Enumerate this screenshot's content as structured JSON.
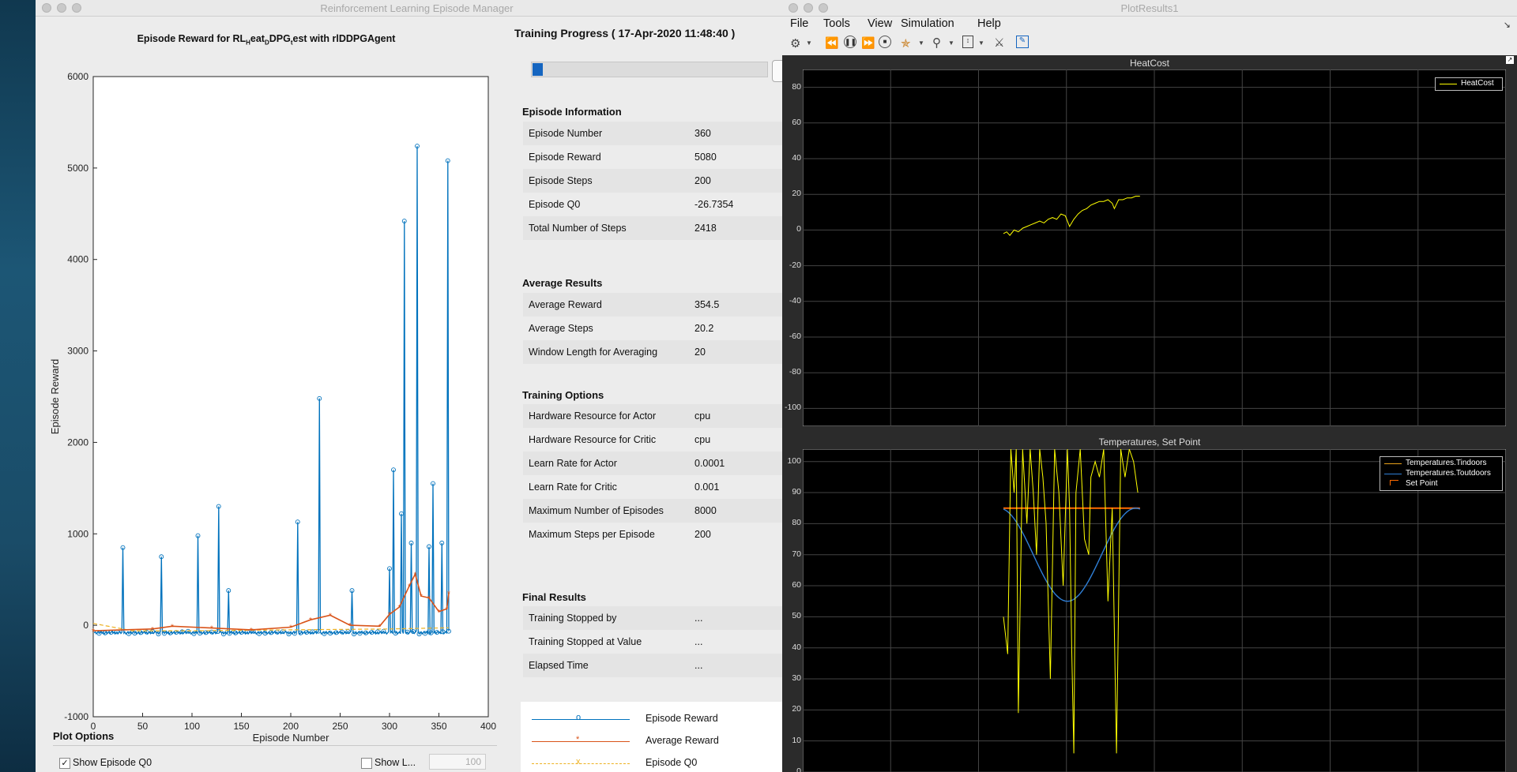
{
  "desktop": {
    "background": "#1c5675"
  },
  "manager": {
    "window_title": "Reinforcement Learning Episode Manager",
    "plot": {
      "title": "Episode Reward for RL_Heat_DDPG_test with rlDDPGAgent",
      "title_prefix": "Episode Reward for RL",
      "title_sub1": "H",
      "title_mid1": "eat",
      "title_sub2": "D",
      "title_mid2": "DPG",
      "title_sub3": "t",
      "title_suffix": "est with rlDDPGAgent",
      "xlabel": "Episode Number",
      "ylabel": "Episode Reward",
      "x_ticks": [
        "0",
        "50",
        "100",
        "150",
        "200",
        "250",
        "300",
        "350",
        "400"
      ],
      "y_ticks": [
        "-1000",
        "0",
        "1000",
        "2000",
        "3000",
        "4000",
        "5000",
        "6000"
      ]
    },
    "chart_data": {
      "type": "line",
      "title": "Episode Reward for RL_Heat_DDPG_test with rlDDPGAgent",
      "xlabel": "Episode Number",
      "ylabel": "Episode Reward",
      "xlim": [
        0,
        400
      ],
      "ylim": [
        -1000,
        6000
      ],
      "spikes": [
        [
          30,
          850
        ],
        [
          69,
          750
        ],
        [
          106,
          980
        ],
        [
          127,
          1300
        ],
        [
          137,
          380
        ],
        [
          207,
          1130
        ],
        [
          229,
          2480
        ],
        [
          262,
          380
        ],
        [
          300,
          620
        ],
        [
          304,
          1700
        ],
        [
          312,
          1220
        ],
        [
          315,
          4420
        ],
        [
          322,
          900
        ],
        [
          328,
          5240
        ],
        [
          340,
          860
        ],
        [
          344,
          1550
        ],
        [
          353,
          900
        ],
        [
          359,
          5080
        ]
      ],
      "series": [
        {
          "name": "Episode Reward",
          "color": "#0072bd",
          "marker": "circle",
          "baseline": -80
        },
        {
          "name": "Average Reward",
          "color": "#d95319",
          "marker": "asterisk",
          "points": [
            [
              0,
              -60
            ],
            [
              60,
              -40
            ],
            [
              80,
              -10
            ],
            [
              120,
              -30
            ],
            [
              160,
              -50
            ],
            [
              200,
              -20
            ],
            [
              220,
              60
            ],
            [
              240,
              110
            ],
            [
              260,
              0
            ],
            [
              290,
              -10
            ],
            [
              300,
              120
            ],
            [
              310,
              200
            ],
            [
              320,
              430
            ],
            [
              326,
              560
            ],
            [
              332,
              320
            ],
            [
              340,
              300
            ],
            [
              350,
              150
            ],
            [
              358,
              180
            ],
            [
              360,
              350
            ]
          ]
        },
        {
          "name": "Episode Q0",
          "color": "#edb120",
          "marker": "x",
          "dashed": true,
          "points": [
            [
              0,
              20
            ],
            [
              40,
              -60
            ],
            [
              100,
              -60
            ],
            [
              200,
              -50
            ],
            [
              300,
              -40
            ],
            [
              360,
              -27
            ]
          ]
        }
      ]
    },
    "progress": {
      "heading": "Training Progress ( 17-Apr-2020 11:48:40 )",
      "fraction": 0.045
    },
    "episode_info": {
      "heading": "Episode Information",
      "rows": [
        {
          "label": "Episode Number",
          "value": "360"
        },
        {
          "label": "Episode Reward",
          "value": "5080"
        },
        {
          "label": "Episode Steps",
          "value": "200"
        },
        {
          "label": "Episode Q0",
          "value": "-26.7354"
        },
        {
          "label": "Total Number of Steps",
          "value": "2418"
        }
      ]
    },
    "average_results": {
      "heading": "Average Results",
      "rows": [
        {
          "label": "Average Reward",
          "value": "354.5"
        },
        {
          "label": "Average Steps",
          "value": "20.2"
        },
        {
          "label": "Window Length for Averaging",
          "value": "20"
        }
      ]
    },
    "training_options": {
      "heading": "Training Options",
      "rows": [
        {
          "label": "Hardware Resource for Actor",
          "value": "cpu"
        },
        {
          "label": "Hardware Resource for Critic",
          "value": "cpu"
        },
        {
          "label": "Learn Rate for Actor",
          "value": "0.0001"
        },
        {
          "label": "Learn Rate for Critic",
          "value": "0.001"
        },
        {
          "label": "Maximum Number of Episodes",
          "value": "8000"
        },
        {
          "label": "Maximum Steps per Episode",
          "value": "200"
        }
      ]
    },
    "final_results": {
      "heading": "Final Results",
      "rows": [
        {
          "label": "Training Stopped by",
          "value": "..."
        },
        {
          "label": "Training Stopped at Value",
          "value": "..."
        },
        {
          "label": "Elapsed Time",
          "value": "..."
        }
      ]
    },
    "legend": [
      {
        "label": "Episode Reward",
        "color": "#0072bd",
        "marker": "o"
      },
      {
        "label": "Average Reward",
        "color": "#d95319",
        "marker": "*"
      },
      {
        "label": "Episode Q0",
        "color": "#edb120",
        "marker": "x"
      }
    ],
    "plot_options": {
      "heading": "Plot Options",
      "show_q0_label": "Show Episode Q0",
      "show_q0_checked": true,
      "show_l_label": "Show L...",
      "show_l_checked": false,
      "window_value": "100"
    }
  },
  "plotresults": {
    "window_title": "PlotResults1",
    "menu": [
      "File",
      "Tools",
      "View",
      "Simulation",
      "Help"
    ],
    "toolbar_icons": [
      "settings-icon",
      "step-back-icon",
      "pause-icon",
      "step-forward-icon",
      "stop-icon",
      "highlight-icon",
      "zoom-icon",
      "fit-icon",
      "cursor-icon",
      "edit-icon"
    ],
    "scope1": {
      "title": "HeatCost",
      "y_ticks": [
        "80",
        "60",
        "40",
        "20",
        "0",
        "-20",
        "-40",
        "-60",
        "-80",
        "-100"
      ],
      "legend": [
        "HeatCost"
      ],
      "chart_data": {
        "type": "line",
        "ylim": [
          -110,
          90
        ],
        "series": [
          {
            "name": "HeatCost",
            "color": "#ffff00",
            "points": [
              [
                0,
                -2
              ],
              [
                3,
                -1
              ],
              [
                6,
                -3
              ],
              [
                10,
                0
              ],
              [
                14,
                -1
              ],
              [
                18,
                1
              ],
              [
                22,
                2
              ],
              [
                26,
                3
              ],
              [
                30,
                4
              ],
              [
                34,
                5
              ],
              [
                38,
                4
              ],
              [
                42,
                6
              ],
              [
                46,
                7
              ],
              [
                50,
                6
              ],
              [
                54,
                9
              ],
              [
                58,
                8
              ],
              [
                62,
                2
              ],
              [
                66,
                6
              ],
              [
                70,
                9
              ],
              [
                74,
                11
              ],
              [
                78,
                12
              ],
              [
                82,
                14
              ],
              [
                86,
                15
              ],
              [
                90,
                16
              ],
              [
                94,
                16
              ],
              [
                98,
                17
              ],
              [
                102,
                15
              ],
              [
                104,
                12
              ],
              [
                108,
                17
              ],
              [
                112,
                17
              ],
              [
                116,
                18
              ],
              [
                120,
                18
              ],
              [
                124,
                19
              ],
              [
                128,
                19
              ]
            ]
          }
        ]
      }
    },
    "scope2": {
      "title": "Temperatures, Set Point",
      "y_ticks": [
        "100",
        "90",
        "80",
        "70",
        "60",
        "50",
        "40",
        "30",
        "20",
        "10",
        "0"
      ],
      "legend": [
        "Temperatures.Tindoors",
        "Temperatures.Toutdoors",
        "Set Point"
      ],
      "chart_data": {
        "type": "line",
        "ylim": [
          0,
          104
        ],
        "series": [
          {
            "name": "Temperatures.Tindoors",
            "color": "#ffff00",
            "points": [
              [
                0,
                50
              ],
              [
                4,
                38
              ],
              [
                7,
                105
              ],
              [
                10,
                90
              ],
              [
                12,
                105
              ],
              [
                14,
                19
              ],
              [
                18,
                105
              ],
              [
                22,
                80
              ],
              [
                25,
                105
              ],
              [
                28,
                90
              ],
              [
                31,
                70
              ],
              [
                34,
                105
              ],
              [
                37,
                95
              ],
              [
                40,
                80
              ],
              [
                44,
                30
              ],
              [
                48,
                105
              ],
              [
                52,
                90
              ],
              [
                56,
                60
              ],
              [
                60,
                105
              ],
              [
                62,
                85
              ],
              [
                64,
                40
              ],
              [
                66,
                6
              ],
              [
                68,
                90
              ],
              [
                72,
                105
              ],
              [
                76,
                75
              ],
              [
                80,
                70
              ],
              [
                82,
                95
              ],
              [
                86,
                100
              ],
              [
                90,
                95
              ],
              [
                94,
                105
              ],
              [
                98,
                55
              ],
              [
                102,
                85
              ],
              [
                106,
                6
              ],
              [
                110,
                105
              ],
              [
                114,
                95
              ],
              [
                118,
                105
              ],
              [
                122,
                100
              ],
              [
                126,
                90
              ]
            ]
          },
          {
            "name": "Temperatures.Toutdoors",
            "color": "#2f7fd6",
            "wave": true
          },
          {
            "name": "Set Point",
            "color": "#ff6a00",
            "value": 85
          }
        ]
      }
    }
  }
}
